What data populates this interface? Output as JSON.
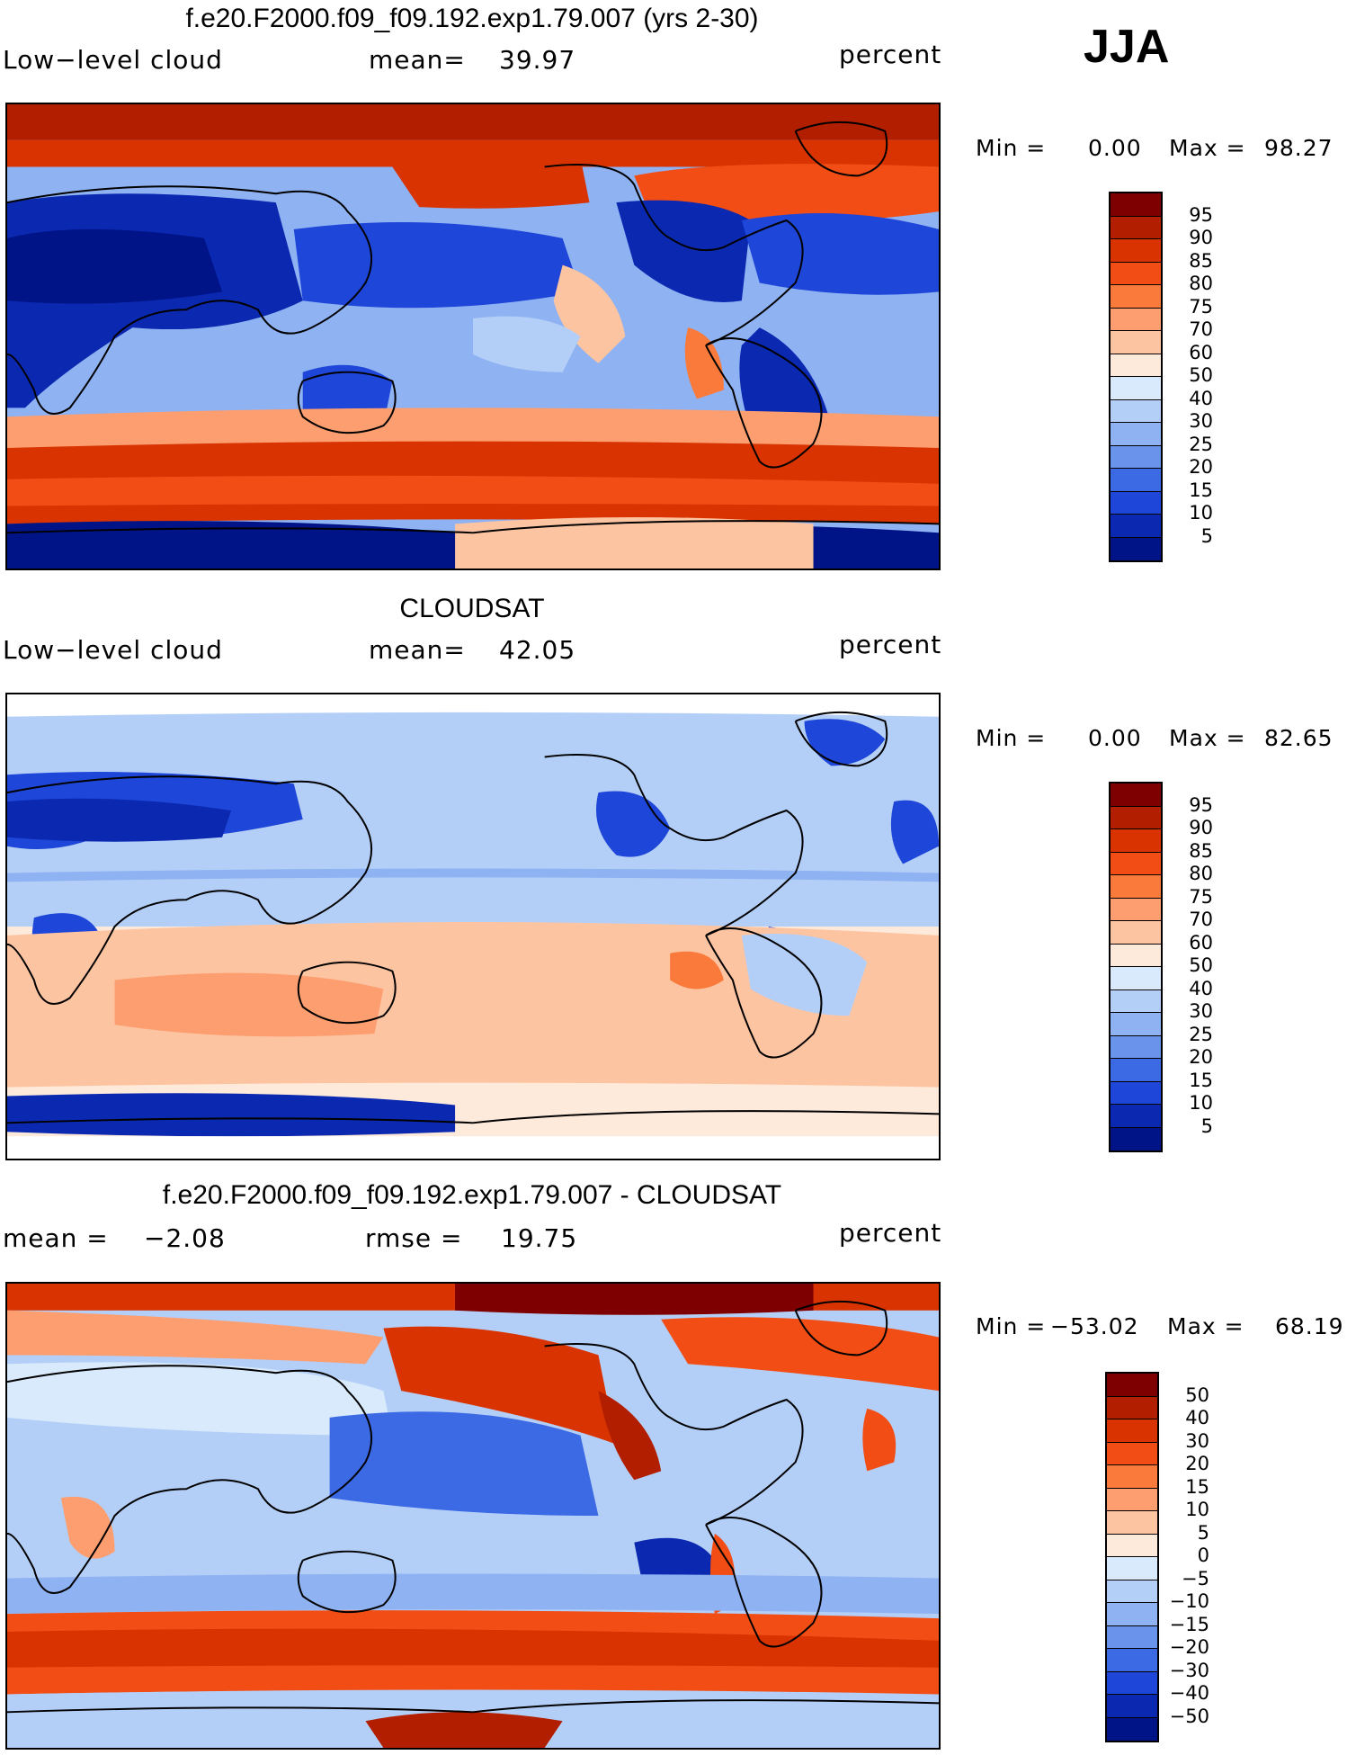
{
  "season": "JJA",
  "panels": [
    {
      "title": "f.e20.F2000.f09_f09.192.exp1.79.007 (yrs 2-30)",
      "left_label": "Low−level cloud",
      "mid_label": "mean=",
      "mid_value": "39.97",
      "right_label": "percent",
      "min_label": "Min =",
      "min_value": "0.00",
      "max_label": "Max =",
      "max_value": "98.27",
      "colorbar": {
        "ticks": [
          "95",
          "90",
          "85",
          "80",
          "75",
          "70",
          "60",
          "50",
          "40",
          "30",
          "25",
          "20",
          "15",
          "10",
          "5"
        ],
        "colors": [
          "#7f0000",
          "#b21e00",
          "#d83300",
          "#f24d14",
          "#fa7a3c",
          "#fc9e70",
          "#fdc4a2",
          "#feeadb",
          "#d8eafb",
          "#b4cff7",
          "#8fb2f2",
          "#6a93ec",
          "#3c6ae4",
          "#1e46d8",
          "#0a28b0",
          "#001487"
        ]
      }
    },
    {
      "title": "CLOUDSAT",
      "left_label": "Low−level cloud",
      "mid_label": "mean=",
      "mid_value": "42.05",
      "right_label": "percent",
      "min_label": "Min =",
      "min_value": "0.00",
      "max_label": "Max =",
      "max_value": "82.65",
      "colorbar": {
        "ticks": [
          "95",
          "90",
          "85",
          "80",
          "75",
          "70",
          "60",
          "50",
          "40",
          "30",
          "25",
          "20",
          "15",
          "10",
          "5"
        ],
        "colors": [
          "#7f0000",
          "#b21e00",
          "#d83300",
          "#f24d14",
          "#fa7a3c",
          "#fc9e70",
          "#fdc4a2",
          "#feeadb",
          "#d8eafb",
          "#b4cff7",
          "#8fb2f2",
          "#6a93ec",
          "#3c6ae4",
          "#1e46d8",
          "#0a28b0",
          "#001487"
        ]
      }
    },
    {
      "title": "f.e20.F2000.f09_f09.192.exp1.79.007 - CLOUDSAT",
      "left_label": "mean =",
      "left_value": "−2.08",
      "mid_label": "rmse =",
      "mid_value": "19.75",
      "right_label": "percent",
      "min_label": "Min =",
      "min_value": "−53.02",
      "max_label": "Max =",
      "max_value": "68.19",
      "colorbar": {
        "ticks": [
          "50",
          "40",
          "30",
          "20",
          "15",
          "10",
          "5",
          "0",
          "−5",
          "−10",
          "−15",
          "−20",
          "−30",
          "−40",
          "−50"
        ],
        "colors": [
          "#7f0000",
          "#b21e00",
          "#d83300",
          "#f24d14",
          "#fa7a3c",
          "#fc9e70",
          "#fdc4a2",
          "#feeadb",
          "#d8eafb",
          "#b4cff7",
          "#8fb2f2",
          "#6a93ec",
          "#3c6ae4",
          "#1e46d8",
          "#0a28b0",
          "#001487"
        ]
      }
    }
  ]
}
